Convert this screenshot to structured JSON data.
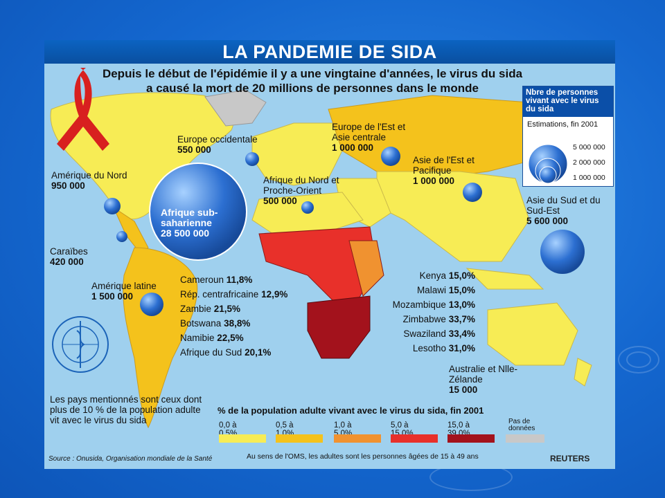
{
  "title": "LA PANDEMIE DE SIDA",
  "subtitle": "Depuis le début de l'épidémie il y a une vingtaine d'années, le virus du sida a causé la mort de 20 millions de personnes dans le monde",
  "regions": [
    {
      "name": "Amérique du Nord",
      "value": "950 000"
    },
    {
      "name": "Europe occidentale",
      "value": "550 000"
    },
    {
      "name": "Europe de l'Est et Asie centrale",
      "value": "1 000 000"
    },
    {
      "name": "Asie de l'Est et Pacifique",
      "value": "1 000 000"
    },
    {
      "name": "Afrique du Nord et Proche-Orient",
      "value": "500 000"
    },
    {
      "name": "Afrique sub-saharienne",
      "value": "28 500 000"
    },
    {
      "name": "Caraïbes",
      "value": "420 000"
    },
    {
      "name": "Amérique latine",
      "value": "1 500 000"
    },
    {
      "name": "Asie du Sud et du Sud-Est",
      "value": "5 600 000"
    },
    {
      "name": "Australie et Nlle-Zélande",
      "value": "15 000"
    }
  ],
  "countries_left": [
    {
      "name": "Cameroun",
      "value": "11,8%"
    },
    {
      "name": "Rép. centrafricaine",
      "value": "12,9%"
    },
    {
      "name": "Zambie",
      "value": "21,5%"
    },
    {
      "name": "Botswana",
      "value": "38,8%"
    },
    {
      "name": "Namibie",
      "value": "22,5%"
    },
    {
      "name": "Afrique du Sud",
      "value": "20,1%"
    }
  ],
  "countries_right": [
    {
      "name": "Kenya",
      "value": "15,0%"
    },
    {
      "name": "Malawi",
      "value": "15,0%"
    },
    {
      "name": "Mozambique",
      "value": "13,0%"
    },
    {
      "name": "Zimbabwe",
      "value": "33,7%"
    },
    {
      "name": "Swaziland",
      "value": "33,4%"
    },
    {
      "name": "Lesotho",
      "value": "31,0%"
    }
  ],
  "legend_box": {
    "heading": "Nbre de personnes vivant avec le virus du sida",
    "estimate": "Estimations, fin 2001",
    "sizes": [
      "5 000 000",
      "2 000 000",
      "1 000 000"
    ]
  },
  "key": {
    "title": "% de la population adulte vivant avec le virus du sida, fin 2001",
    "items": [
      {
        "label": "0,0 à 0,5%",
        "color": "#f7ec55"
      },
      {
        "label": "0,5 à 1,0%",
        "color": "#f4c21c"
      },
      {
        "label": "1,0 à 5,0%",
        "color": "#f09230"
      },
      {
        "label": "5,0 à 15,0%",
        "color": "#e8302a"
      },
      {
        "label": "15,0 à 39,0%",
        "color": "#a3121c"
      },
      {
        "label": "Pas de données",
        "color": "#c8c8c8"
      }
    ]
  },
  "note": "Les pays mentionnés sont ceux dont plus de 10 % de la population adulte vit avec le virus du sida",
  "source": "Source : Onusida, Organisation mondiale de la Santé",
  "oms_note": "Au sens de l'OMS, les adultes sont les personnes âgées de 15 à 49 ans",
  "brand": "REUTERS"
}
